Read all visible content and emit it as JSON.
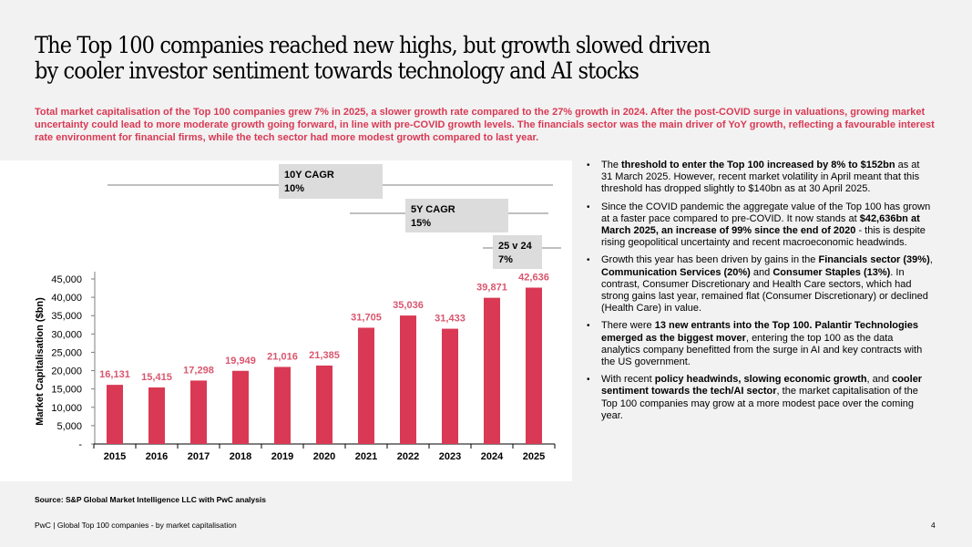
{
  "slide": {
    "title_lines": [
      "The Top 100 companies reached new highs, but growth slowed driven",
      "by cooler investor sentiment towards technology and AI stocks"
    ],
    "intro": "Total market capitalisation of the Top 100 companies grew 7% in 2025, a slower growth rate compared to the 27% growth in 2024. After the post-COVID surge in valuations, growing market uncertainty could lead to more moderate growth going forward, in line with pre-COVID growth levels. The financials sector was the main driver of YoY growth, reflecting a favourable interest rate environment for financial firms, while the tech sector had more modest growth compared to last year.",
    "source": "Source: S&P Global Market Intelligence LLC with PwC analysis",
    "footer": "PwC | Global Top 100 companies - by market capitalisation",
    "page_number": "4"
  },
  "colors": {
    "accent": "#d93954",
    "label": "#d9566e",
    "callout_bg": "#dcdcdc",
    "background": "#f2f2f2",
    "panel": "#ffffff"
  },
  "bullets": [
    [
      {
        "t": "The ",
        "b": false
      },
      {
        "t": "threshold to enter the Top 100 increased by 8% to $152bn",
        "b": true
      },
      {
        "t": " as at 31 March 2025. However, recent market volatility in April meant that this threshold has dropped slightly to $140bn as at 30 April 2025.",
        "b": false
      }
    ],
    [
      {
        "t": "Since the COVID pandemic the aggregate value of the Top 100 has grown at a faster pace compared to pre-COVID. It now stands at ",
        "b": false
      },
      {
        "t": "$42,636bn at March 2025, an increase of 99% since the end of 2020",
        "b": true
      },
      {
        "t": " - this is despite rising geopolitical uncertainty and recent macroeconomic headwinds.",
        "b": false
      }
    ],
    [
      {
        "t": "Growth this year has been driven by gains in the ",
        "b": false
      },
      {
        "t": "Financials sector (39%)",
        "b": true
      },
      {
        "t": ", ",
        "b": false
      },
      {
        "t": "Communication Services (20%)",
        "b": true
      },
      {
        "t": " and ",
        "b": false
      },
      {
        "t": "Consumer Staples (13%)",
        "b": true
      },
      {
        "t": ". In contrast, Consumer Discretionary and Health Care sectors, which had strong gains last year, remained flat (Consumer Discretionary) or declined (Health Care) in value.",
        "b": false
      }
    ],
    [
      {
        "t": "There were ",
        "b": false
      },
      {
        "t": "13 new entrants into the Top 100. Palantir Technologies emerged as the biggest mover",
        "b": true
      },
      {
        "t": ", entering  the top 100 as the data analytics company benefitted from the surge in AI and key contracts with the US government.",
        "b": false
      }
    ],
    [
      {
        "t": "With recent ",
        "b": false
      },
      {
        "t": "policy headwinds, slowing economic growth",
        "b": true
      },
      {
        "t": ", and ",
        "b": false
      },
      {
        "t": "cooler sentiment towards the tech/AI sector",
        "b": true
      },
      {
        "t": ", the market capitalisation of the Top 100 companies may grow at a more modest pace over the coming year.",
        "b": false
      }
    ]
  ],
  "chart_data": {
    "type": "bar",
    "title": "",
    "xlabel": "",
    "ylabel": "Market Capitalisation ($bn)",
    "categories": [
      "2015",
      "2016",
      "2017",
      "2018",
      "2019",
      "2020",
      "2021",
      "2022",
      "2023",
      "2024",
      "2025"
    ],
    "values": [
      16131,
      15415,
      17298,
      19949,
      21016,
      21385,
      31705,
      35036,
      31433,
      39871,
      42636
    ],
    "data_labels": [
      "16,131",
      "15,415",
      "17,298",
      "19,949",
      "21,016",
      "21,385",
      "31,705",
      "35,036",
      "31,433",
      "39,871",
      "42,636"
    ],
    "ylim": [
      0,
      45000
    ],
    "yticks": [
      0,
      5000,
      10000,
      15000,
      20000,
      25000,
      30000,
      35000,
      40000,
      45000
    ],
    "ytick_labels": [
      "-",
      "5,000",
      "10,000",
      "15,000",
      "20,000",
      "25,000",
      "30,000",
      "35,000",
      "40,000",
      "45,000"
    ],
    "grid": false,
    "legend": "none",
    "annotations": [
      {
        "label": "10Y CAGR",
        "value": "10%",
        "from": "2015",
        "to": "2025"
      },
      {
        "label": "5Y CAGR",
        "value": "15%",
        "from": "2020",
        "to": "2025"
      },
      {
        "label": "25 v 24",
        "value": "7%",
        "from": "2024",
        "to": "2025"
      }
    ]
  }
}
